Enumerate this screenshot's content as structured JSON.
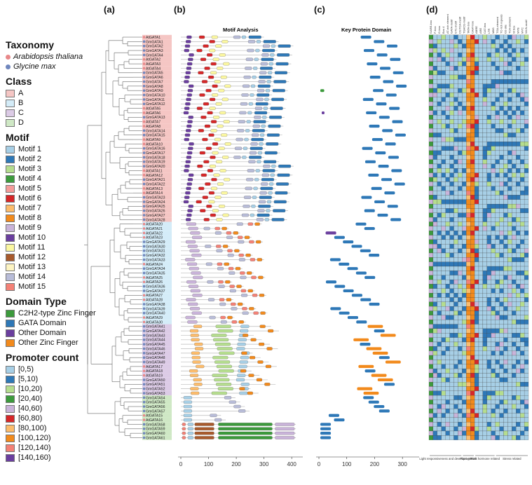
{
  "panels": {
    "a": "(a)",
    "b": "(b)",
    "c": "(c)",
    "d": "(d)"
  },
  "titles": {
    "motif": "Motif Analysis",
    "domain": "Key Protein Domain"
  },
  "legend": {
    "taxonomy": {
      "title": "Taxonomy",
      "items": [
        {
          "label": "Arabidopsis thaliana",
          "color": "#e8888a"
        },
        {
          "label": "Glycine max",
          "color": "#6f86bd"
        }
      ]
    },
    "class": {
      "title": "Class",
      "items": [
        {
          "label": "A",
          "color": "#f5c6c4"
        },
        {
          "label": "B",
          "color": "#d4ecf8"
        },
        {
          "label": "C",
          "color": "#dccbe6"
        },
        {
          "label": "D",
          "color": "#cfe8c5"
        }
      ]
    },
    "motif": {
      "title": "Motif",
      "items": [
        {
          "label": "Motif 1",
          "color": "#a7cfe6"
        },
        {
          "label": "Motif 2",
          "color": "#2e78b7"
        },
        {
          "label": "Motif 3",
          "color": "#b5dd8e"
        },
        {
          "label": "Motif 4",
          "color": "#3c9a3c"
        },
        {
          "label": "Motif 5",
          "color": "#f59c9a"
        },
        {
          "label": "Motif 6",
          "color": "#d62728"
        },
        {
          "label": "Motif 7",
          "color": "#fcbc6c"
        },
        {
          "label": "Motif 8",
          "color": "#f28a1c"
        },
        {
          "label": "Motif 9",
          "color": "#c9b3d9"
        },
        {
          "label": "Motif 10",
          "color": "#6a3e9e"
        },
        {
          "label": "Motif 11",
          "color": "#fbf7a0"
        },
        {
          "label": "Motif 12",
          "color": "#a85a2c"
        },
        {
          "label": "Motif 13",
          "color": "#fdf4c2"
        },
        {
          "label": "Motif 14",
          "color": "#b8bcd8"
        },
        {
          "label": "Motif 15",
          "color": "#f48176"
        }
      ]
    },
    "domain": {
      "title": "Domain Type",
      "items": [
        {
          "label": "C2H2-type Zinc Finger",
          "color": "#3c9a3c"
        },
        {
          "label": "GATA Domain",
          "color": "#2e78b7"
        },
        {
          "label": "Other Domain",
          "color": "#6a3e9e"
        },
        {
          "label": "Other Zinc Finger",
          "color": "#f28a1c"
        }
      ]
    },
    "promoter": {
      "title": "Promoter count",
      "items": [
        {
          "label": "[0,5)",
          "color": "#a7cfe6"
        },
        {
          "label": "[5,10)",
          "color": "#2e78b7"
        },
        {
          "label": "[10,20)",
          "color": "#b5dd8e"
        },
        {
          "label": "[20,40)",
          "color": "#3c9a3c"
        },
        {
          "label": "[40,60)",
          "color": "#c9b3d9"
        },
        {
          "label": "[60,80)",
          "color": "#d62728"
        },
        {
          "label": "[80,100)",
          "color": "#fcbc6c"
        },
        {
          "label": "[100,120)",
          "color": "#f28a1c"
        },
        {
          "label": "[120,140)",
          "color": "#f48176"
        },
        {
          "label": "[140,160)",
          "color": "#6a3e9e"
        }
      ]
    }
  },
  "genes": [
    {
      "name": "AtGATA1",
      "sp": "At",
      "cls": "A"
    },
    {
      "name": "GmGATA1",
      "sp": "Gm",
      "cls": "A"
    },
    {
      "name": "GmGATA2",
      "sp": "Gm",
      "cls": "A"
    },
    {
      "name": "GmGATA3",
      "sp": "Gm",
      "cls": "A"
    },
    {
      "name": "GmGATA4",
      "sp": "Gm",
      "cls": "A"
    },
    {
      "name": "AtGATA2",
      "sp": "At",
      "cls": "A"
    },
    {
      "name": "AtGATA3",
      "sp": "At",
      "cls": "A"
    },
    {
      "name": "AtGATA4",
      "sp": "At",
      "cls": "A"
    },
    {
      "name": "GmGATA5",
      "sp": "Gm",
      "cls": "A"
    },
    {
      "name": "GmGATA6",
      "sp": "Gm",
      "cls": "A"
    },
    {
      "name": "GmGATA7",
      "sp": "Gm",
      "cls": "A"
    },
    {
      "name": "GmGATA8",
      "sp": "Gm",
      "cls": "A"
    },
    {
      "name": "GmGATA9",
      "sp": "Gm",
      "cls": "A"
    },
    {
      "name": "GmGATA10",
      "sp": "Gm",
      "cls": "A"
    },
    {
      "name": "GmGATA11",
      "sp": "Gm",
      "cls": "A"
    },
    {
      "name": "GmGATA12",
      "sp": "Gm",
      "cls": "A"
    },
    {
      "name": "AtGATA5",
      "sp": "At",
      "cls": "A"
    },
    {
      "name": "AtGATA6",
      "sp": "At",
      "cls": "A"
    },
    {
      "name": "GmGATA13",
      "sp": "Gm",
      "cls": "A"
    },
    {
      "name": "AtGATA7",
      "sp": "At",
      "cls": "A"
    },
    {
      "name": "AtGATA8",
      "sp": "At",
      "cls": "A"
    },
    {
      "name": "GmGATA14",
      "sp": "Gm",
      "cls": "A"
    },
    {
      "name": "GmGATA15",
      "sp": "Gm",
      "cls": "A"
    },
    {
      "name": "AtGATA9",
      "sp": "At",
      "cls": "A"
    },
    {
      "name": "AtGATA10",
      "sp": "At",
      "cls": "A"
    },
    {
      "name": "GmGATA16",
      "sp": "Gm",
      "cls": "A"
    },
    {
      "name": "GmGATA17",
      "sp": "Gm",
      "cls": "A"
    },
    {
      "name": "GmGATA18",
      "sp": "Gm",
      "cls": "A"
    },
    {
      "name": "GmGATA19",
      "sp": "Gm",
      "cls": "A"
    },
    {
      "name": "GmGATA20",
      "sp": "Gm",
      "cls": "A"
    },
    {
      "name": "AtGATA11",
      "sp": "At",
      "cls": "A"
    },
    {
      "name": "AtGATA12",
      "sp": "At",
      "cls": "A"
    },
    {
      "name": "GmGATA21",
      "sp": "Gm",
      "cls": "A"
    },
    {
      "name": "GmGATA22",
      "sp": "Gm",
      "cls": "A"
    },
    {
      "name": "AtGATA13",
      "sp": "At",
      "cls": "A"
    },
    {
      "name": "AtGATA14",
      "sp": "At",
      "cls": "A"
    },
    {
      "name": "GmGATA23",
      "sp": "Gm",
      "cls": "A"
    },
    {
      "name": "GmGATA24",
      "sp": "Gm",
      "cls": "A"
    },
    {
      "name": "GmGATA25",
      "sp": "Gm",
      "cls": "A"
    },
    {
      "name": "GmGATA26",
      "sp": "Gm",
      "cls": "A"
    },
    {
      "name": "GmGATA27",
      "sp": "Gm",
      "cls": "A"
    },
    {
      "name": "GmGATA28",
      "sp": "Gm",
      "cls": "A"
    },
    {
      "name": "AtGATA20",
      "sp": "At",
      "cls": "B"
    },
    {
      "name": "AtGATA21",
      "sp": "At",
      "cls": "B"
    },
    {
      "name": "AtGATA22",
      "sp": "At",
      "cls": "B"
    },
    {
      "name": "AtGATA23",
      "sp": "At",
      "cls": "B"
    },
    {
      "name": "GmGATA29",
      "sp": "Gm",
      "cls": "B"
    },
    {
      "name": "GmGATA30",
      "sp": "Gm",
      "cls": "B"
    },
    {
      "name": "GmGATA31",
      "sp": "Gm",
      "cls": "B"
    },
    {
      "name": "GmGATA32",
      "sp": "Gm",
      "cls": "B"
    },
    {
      "name": "GmGATA33",
      "sp": "Gm",
      "cls": "B"
    },
    {
      "name": "AtGATA24",
      "sp": "At",
      "cls": "B"
    },
    {
      "name": "GmGATA34",
      "sp": "Gm",
      "cls": "B"
    },
    {
      "name": "GmGATA35",
      "sp": "Gm",
      "cls": "B"
    },
    {
      "name": "AtGATA25",
      "sp": "At",
      "cls": "B"
    },
    {
      "name": "AtGATA26",
      "sp": "At",
      "cls": "B"
    },
    {
      "name": "GmGATA36",
      "sp": "Gm",
      "cls": "B"
    },
    {
      "name": "GmGATA37",
      "sp": "Gm",
      "cls": "B"
    },
    {
      "name": "AtGATA27",
      "sp": "At",
      "cls": "B"
    },
    {
      "name": "AtGATA28",
      "sp": "At",
      "cls": "B"
    },
    {
      "name": "GmGATA38",
      "sp": "Gm",
      "cls": "B"
    },
    {
      "name": "GmGATA39",
      "sp": "Gm",
      "cls": "B"
    },
    {
      "name": "GmGATA40",
      "sp": "Gm",
      "cls": "B"
    },
    {
      "name": "AtGATA29",
      "sp": "At",
      "cls": "B"
    },
    {
      "name": "AtGATA30",
      "sp": "At",
      "cls": "B"
    },
    {
      "name": "GmGATA41",
      "sp": "Gm",
      "cls": "C"
    },
    {
      "name": "GmGATA42",
      "sp": "Gm",
      "cls": "C"
    },
    {
      "name": "GmGATA43",
      "sp": "Gm",
      "cls": "C"
    },
    {
      "name": "GmGATA44",
      "sp": "Gm",
      "cls": "C"
    },
    {
      "name": "GmGATA45",
      "sp": "Gm",
      "cls": "C"
    },
    {
      "name": "GmGATA46",
      "sp": "Gm",
      "cls": "C"
    },
    {
      "name": "GmGATA47",
      "sp": "Gm",
      "cls": "C"
    },
    {
      "name": "GmGATA48",
      "sp": "Gm",
      "cls": "C"
    },
    {
      "name": "GmGATA49",
      "sp": "Gm",
      "cls": "C"
    },
    {
      "name": "AtGATA17",
      "sp": "At",
      "cls": "C"
    },
    {
      "name": "AtGATA18",
      "sp": "At",
      "cls": "C"
    },
    {
      "name": "AtGATA19",
      "sp": "At",
      "cls": "C"
    },
    {
      "name": "GmGATA50",
      "sp": "Gm",
      "cls": "C"
    },
    {
      "name": "GmGATA51",
      "sp": "Gm",
      "cls": "C"
    },
    {
      "name": "GmGATA52",
      "sp": "Gm",
      "cls": "C"
    },
    {
      "name": "GmGATA53",
      "sp": "Gm",
      "cls": "C"
    },
    {
      "name": "GmGATA54",
      "sp": "Gm",
      "cls": "D"
    },
    {
      "name": "GmGATA55",
      "sp": "Gm",
      "cls": "D"
    },
    {
      "name": "GmGATA56",
      "sp": "Gm",
      "cls": "D"
    },
    {
      "name": "GmGATA57",
      "sp": "Gm",
      "cls": "D"
    },
    {
      "name": "AtGATA15",
      "sp": "At",
      "cls": "D"
    },
    {
      "name": "AtGATA16",
      "sp": "At",
      "cls": "D"
    },
    {
      "name": "GmGATA58",
      "sp": "Gm",
      "cls": "D"
    },
    {
      "name": "GmGATA59",
      "sp": "Gm",
      "cls": "D"
    },
    {
      "name": "GmGATA60",
      "sp": "Gm",
      "cls": "D"
    },
    {
      "name": "GmGATA61",
      "sp": "Gm",
      "cls": "D"
    }
  ],
  "motif_axis": {
    "ticks": [
      0,
      100,
      200,
      300,
      400
    ],
    "max": 440
  },
  "domain_axis": {
    "ticks": [
      0,
      100,
      200,
      300
    ],
    "max": 360
  },
  "promoter_cols": [
    "GARE-box",
    "P-box",
    "G-box",
    "Box 4",
    "AT-rich element",
    "GATA-motif",
    "GT1-motif",
    "CGTCA-motif",
    "TGACG-motif",
    "TATA-box",
    "CAAT-box",
    "ABRE",
    "ARE",
    "CAT-box",
    "LTR",
    "MBS",
    "TGA-element",
    "TC-rich repeats",
    "O2-site",
    "TCA-element",
    "W box",
    "MYB",
    "MYC",
    "WUN-motif"
  ],
  "promoter_groups": [
    "Light responsiveness and development",
    "Plant growth",
    "Plant hormone related",
    "Stress related"
  ]
}
